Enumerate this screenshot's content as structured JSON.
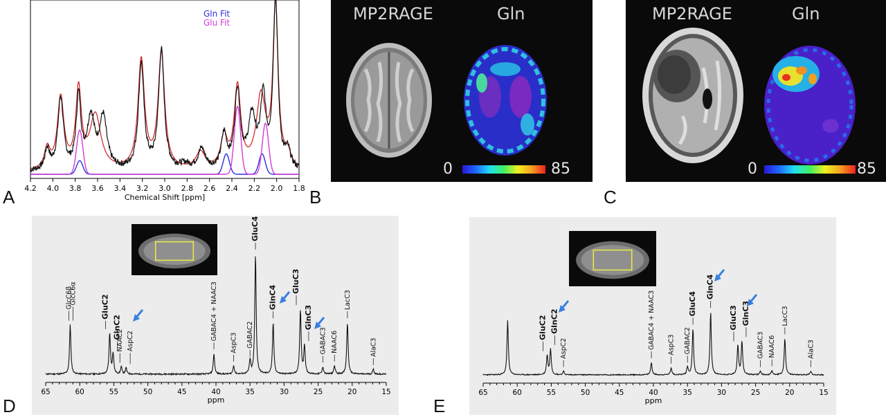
{
  "panels": {
    "a": "A",
    "b": "B",
    "c": "C",
    "d": "D",
    "e": "E"
  },
  "panel_b": {
    "left_label": "MP2RAGE",
    "right_label": "Gln",
    "scale_min": "0",
    "scale_max": "85"
  },
  "panel_c": {
    "left_label": "MP2RAGE",
    "right_label": "Gln",
    "scale_min": "0",
    "scale_max": "85"
  },
  "colors": {
    "gln_fit": "#2e2ee0",
    "glu_fit": "#d63ad6",
    "spectrum": "#111111",
    "model": "#d32b2b",
    "arrow": "#3a7fe0",
    "roi_box": "#e8e84a"
  },
  "chart_data": [
    {
      "id": "A",
      "type": "line",
      "xlabel": "Chemical Shift [ppm]",
      "xlim": [
        4.2,
        1.8
      ],
      "x_ticks": [
        "4.2",
        "4.0",
        "3.8",
        "3.6",
        "3.4",
        "3.2",
        "3.0",
        "2.8",
        "2.6",
        "2.4",
        "2.2",
        "2.0",
        "1.8"
      ],
      "legend": [
        "Gln Fit",
        "Glu Fit"
      ],
      "legend_position": "top-right",
      "series": [
        {
          "name": "Gln Fit",
          "peaks": [
            [
              3.76,
              0.08
            ],
            [
              2.45,
              0.12
            ],
            [
              2.13,
              0.12
            ]
          ]
        },
        {
          "name": "Glu Fit",
          "peaks": [
            [
              3.76,
              0.26
            ],
            [
              2.35,
              0.4
            ],
            [
              2.1,
              0.3
            ]
          ]
        }
      ]
    },
    {
      "id": "D",
      "type": "line",
      "xlabel": "ppm",
      "xlim": [
        65,
        15
      ],
      "x_ticks": [
        "65",
        "60",
        "55",
        "50",
        "45",
        "40",
        "35",
        "30",
        "25",
        "20",
        "15"
      ],
      "peaks": [
        {
          "ppm": 61.4,
          "h": 0.41,
          "label": "GlcC6α",
          "bold": false
        },
        {
          "ppm": 61.0,
          "h": 0.0,
          "label": "GlcC6β",
          "bold": false
        },
        {
          "ppm": 55.6,
          "h": 0.34,
          "label": "GluC2",
          "bold": true
        },
        {
          "ppm": 55.1,
          "h": 0.17,
          "label": "GlnC2",
          "bold": true
        },
        {
          "ppm": 53.9,
          "h": 0.06,
          "label": "NAAC2",
          "bold": false
        },
        {
          "ppm": 53.2,
          "h": 0.05,
          "label": "AspC2",
          "bold": false
        },
        {
          "ppm": 40.3,
          "h": 0.17,
          "label": "GABAC4 + NAAC3",
          "bold": false
        },
        {
          "ppm": 37.4,
          "h": 0.07,
          "label": "AspC3",
          "bold": false
        },
        {
          "ppm": 35.0,
          "h": 0.11,
          "label": "GABAC2",
          "bold": false
        },
        {
          "ppm": 34.2,
          "h": 1.0,
          "label": "GluC4",
          "bold": true
        },
        {
          "ppm": 31.6,
          "h": 0.43,
          "label": "GlnC4",
          "bold": true
        },
        {
          "ppm": 27.6,
          "h": 0.54,
          "label": "GluC3",
          "bold": true
        },
        {
          "ppm": 27.0,
          "h": 0.24,
          "label": "GlnC3",
          "bold": true
        },
        {
          "ppm": 24.3,
          "h": 0.06,
          "label": "GABAC3",
          "bold": false
        },
        {
          "ppm": 22.6,
          "h": 0.07,
          "label": "NAAC6",
          "bold": false
        },
        {
          "ppm": 20.7,
          "h": 0.43,
          "label": "LacC3",
          "bold": false
        },
        {
          "ppm": 16.9,
          "h": 0.04,
          "label": "AlaC3",
          "bold": false
        }
      ]
    },
    {
      "id": "E",
      "type": "line",
      "xlabel": "ppm",
      "xlim": [
        65,
        15
      ],
      "x_ticks": [
        "65",
        "60",
        "55",
        "50",
        "45",
        "40",
        "35",
        "30",
        "25",
        "20",
        "15"
      ],
      "peaks": [
        {
          "ppm": 61.4,
          "h": 0.61,
          "label": "",
          "bold": false
        },
        {
          "ppm": 55.6,
          "h": 0.22,
          "label": "GluC2",
          "bold": true
        },
        {
          "ppm": 55.1,
          "h": 0.29,
          "label": "GlnC2",
          "bold": true
        },
        {
          "ppm": 53.2,
          "h": 0.04,
          "label": "AspC2",
          "bold": false
        },
        {
          "ppm": 40.3,
          "h": 0.14,
          "label": "GABAC4 + NAAC3",
          "bold": false
        },
        {
          "ppm": 37.4,
          "h": 0.08,
          "label": "AspC3",
          "bold": false
        },
        {
          "ppm": 35.0,
          "h": 0.09,
          "label": "GABAC2",
          "bold": false
        },
        {
          "ppm": 34.2,
          "h": 0.52,
          "label": "GluC4",
          "bold": true
        },
        {
          "ppm": 31.6,
          "h": 0.71,
          "label": "GlnC4",
          "bold": true
        },
        {
          "ppm": 27.6,
          "h": 0.33,
          "label": "GluC3",
          "bold": true
        },
        {
          "ppm": 27.0,
          "h": 0.38,
          "label": "GlnC3",
          "bold": true
        },
        {
          "ppm": 24.3,
          "h": 0.04,
          "label": "GABAC3",
          "bold": false
        },
        {
          "ppm": 22.6,
          "h": 0.05,
          "label": "NAAC6",
          "bold": false
        },
        {
          "ppm": 20.7,
          "h": 0.41,
          "label": "LacC3",
          "bold": false
        },
        {
          "ppm": 16.9,
          "h": 0.04,
          "label": "AlaC3",
          "bold": false
        }
      ]
    }
  ]
}
